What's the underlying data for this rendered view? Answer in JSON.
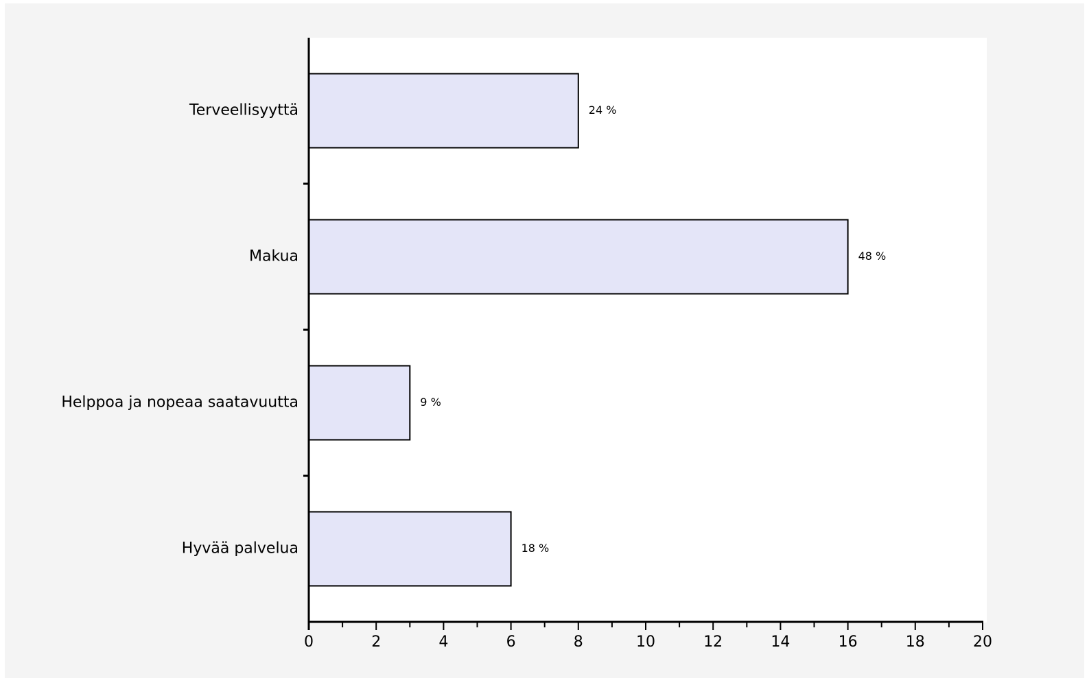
{
  "chart_data": {
    "type": "bar",
    "orientation": "horizontal",
    "categories": [
      "Terveellisyyttä",
      "Makua",
      "Helppoa ja nopeaa saatavuutta",
      "Hyvää palvelua"
    ],
    "values": [
      8,
      16,
      3,
      6
    ],
    "data_labels": [
      "24 %",
      "48 %",
      "9 %",
      "18 %"
    ],
    "xlim": [
      0,
      20
    ],
    "x_ticks": [
      0,
      2,
      4,
      6,
      8,
      10,
      12,
      14,
      16,
      18,
      20
    ],
    "title": "",
    "xlabel": "",
    "ylabel": "",
    "grid": false,
    "legend": "none",
    "colors": {
      "bar_fill": "#e4e5f8",
      "bar_stroke": "#000000",
      "plot_background": "#ffffff",
      "outer_background": "#f4f4f4"
    }
  }
}
